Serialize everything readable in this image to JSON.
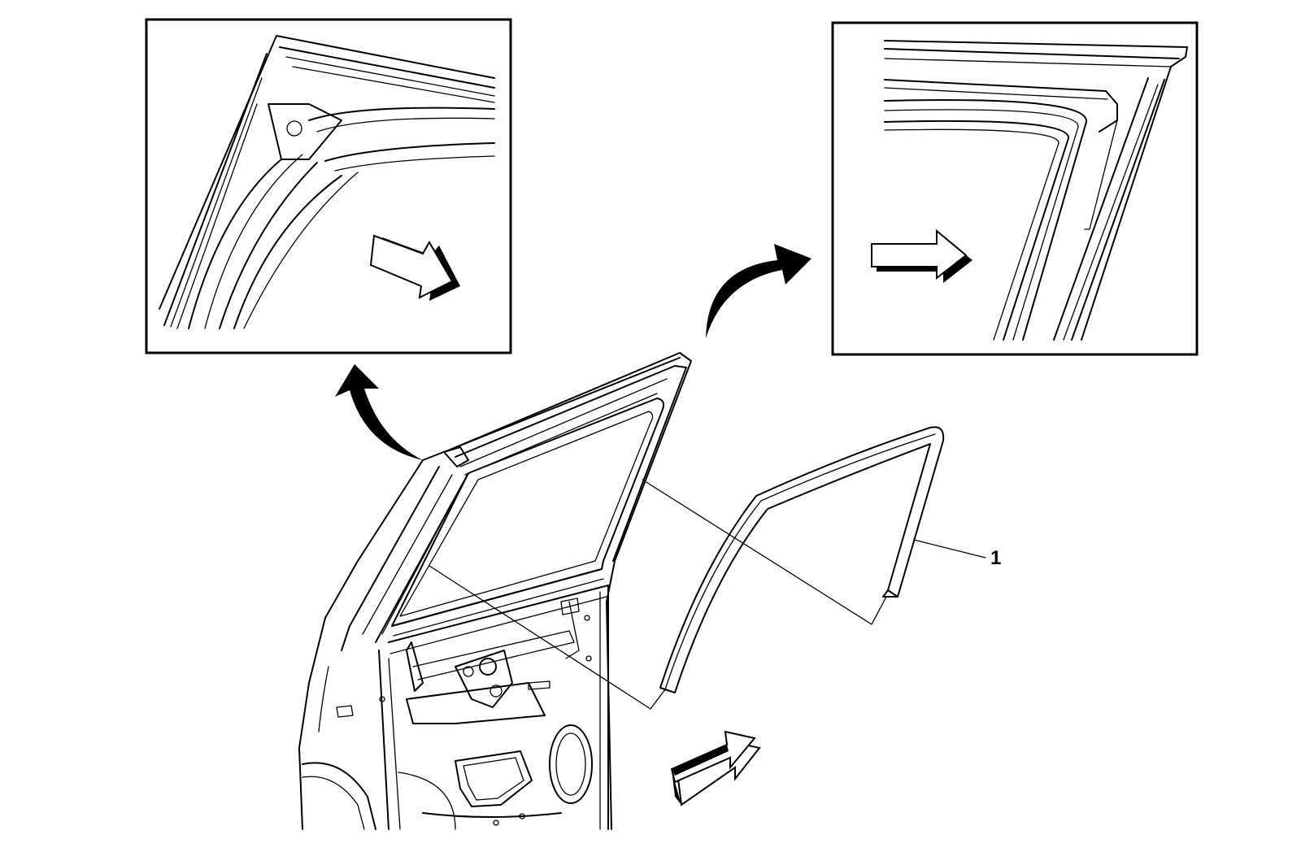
{
  "diagram": {
    "callouts": [
      {
        "id": "1",
        "label": "1"
      }
    ],
    "views": [
      {
        "name": "detail-view-front-upper-corner"
      },
      {
        "name": "detail-view-rear-upper-corner"
      },
      {
        "name": "main-view-rear-door-and-weatherstrip"
      }
    ],
    "colors": {
      "line": "#000000",
      "background": "#ffffff",
      "arrow_fill": "#ffffff"
    }
  }
}
